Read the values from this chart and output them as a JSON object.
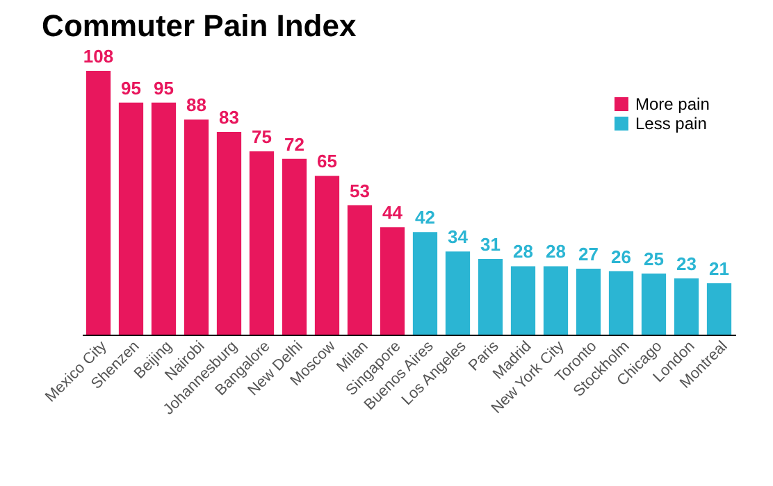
{
  "chart_data": {
    "type": "bar",
    "title": "Commuter Pain Index",
    "data_labels": true,
    "legend": "top right",
    "tick_labels": "x",
    "categories": [
      "Mexico City",
      "Shenzen",
      "Beijing",
      "Nairobi",
      "Johannesburg",
      "Bangalore",
      "New Delhi",
      "Moscow",
      "Milan",
      "Singapore",
      "Buenos Aires",
      "Los Angeles",
      "Paris",
      "Madrid",
      "New York City",
      "Toronto",
      "Stockholm",
      "Chicago",
      "London",
      "Montreal"
    ],
    "series": [
      {
        "name": "More pain",
        "color": "#e8175d",
        "values": [
          108,
          95,
          95,
          88,
          83,
          75,
          72,
          65,
          53,
          44,
          null,
          null,
          null,
          null,
          null,
          null,
          null,
          null,
          null,
          null
        ]
      },
      {
        "name": "Less pain",
        "color": "#2bb5d3",
        "values": [
          null,
          null,
          null,
          null,
          null,
          null,
          null,
          null,
          null,
          null,
          42,
          34,
          31,
          28,
          28,
          27,
          26,
          25,
          23,
          21
        ]
      }
    ]
  }
}
